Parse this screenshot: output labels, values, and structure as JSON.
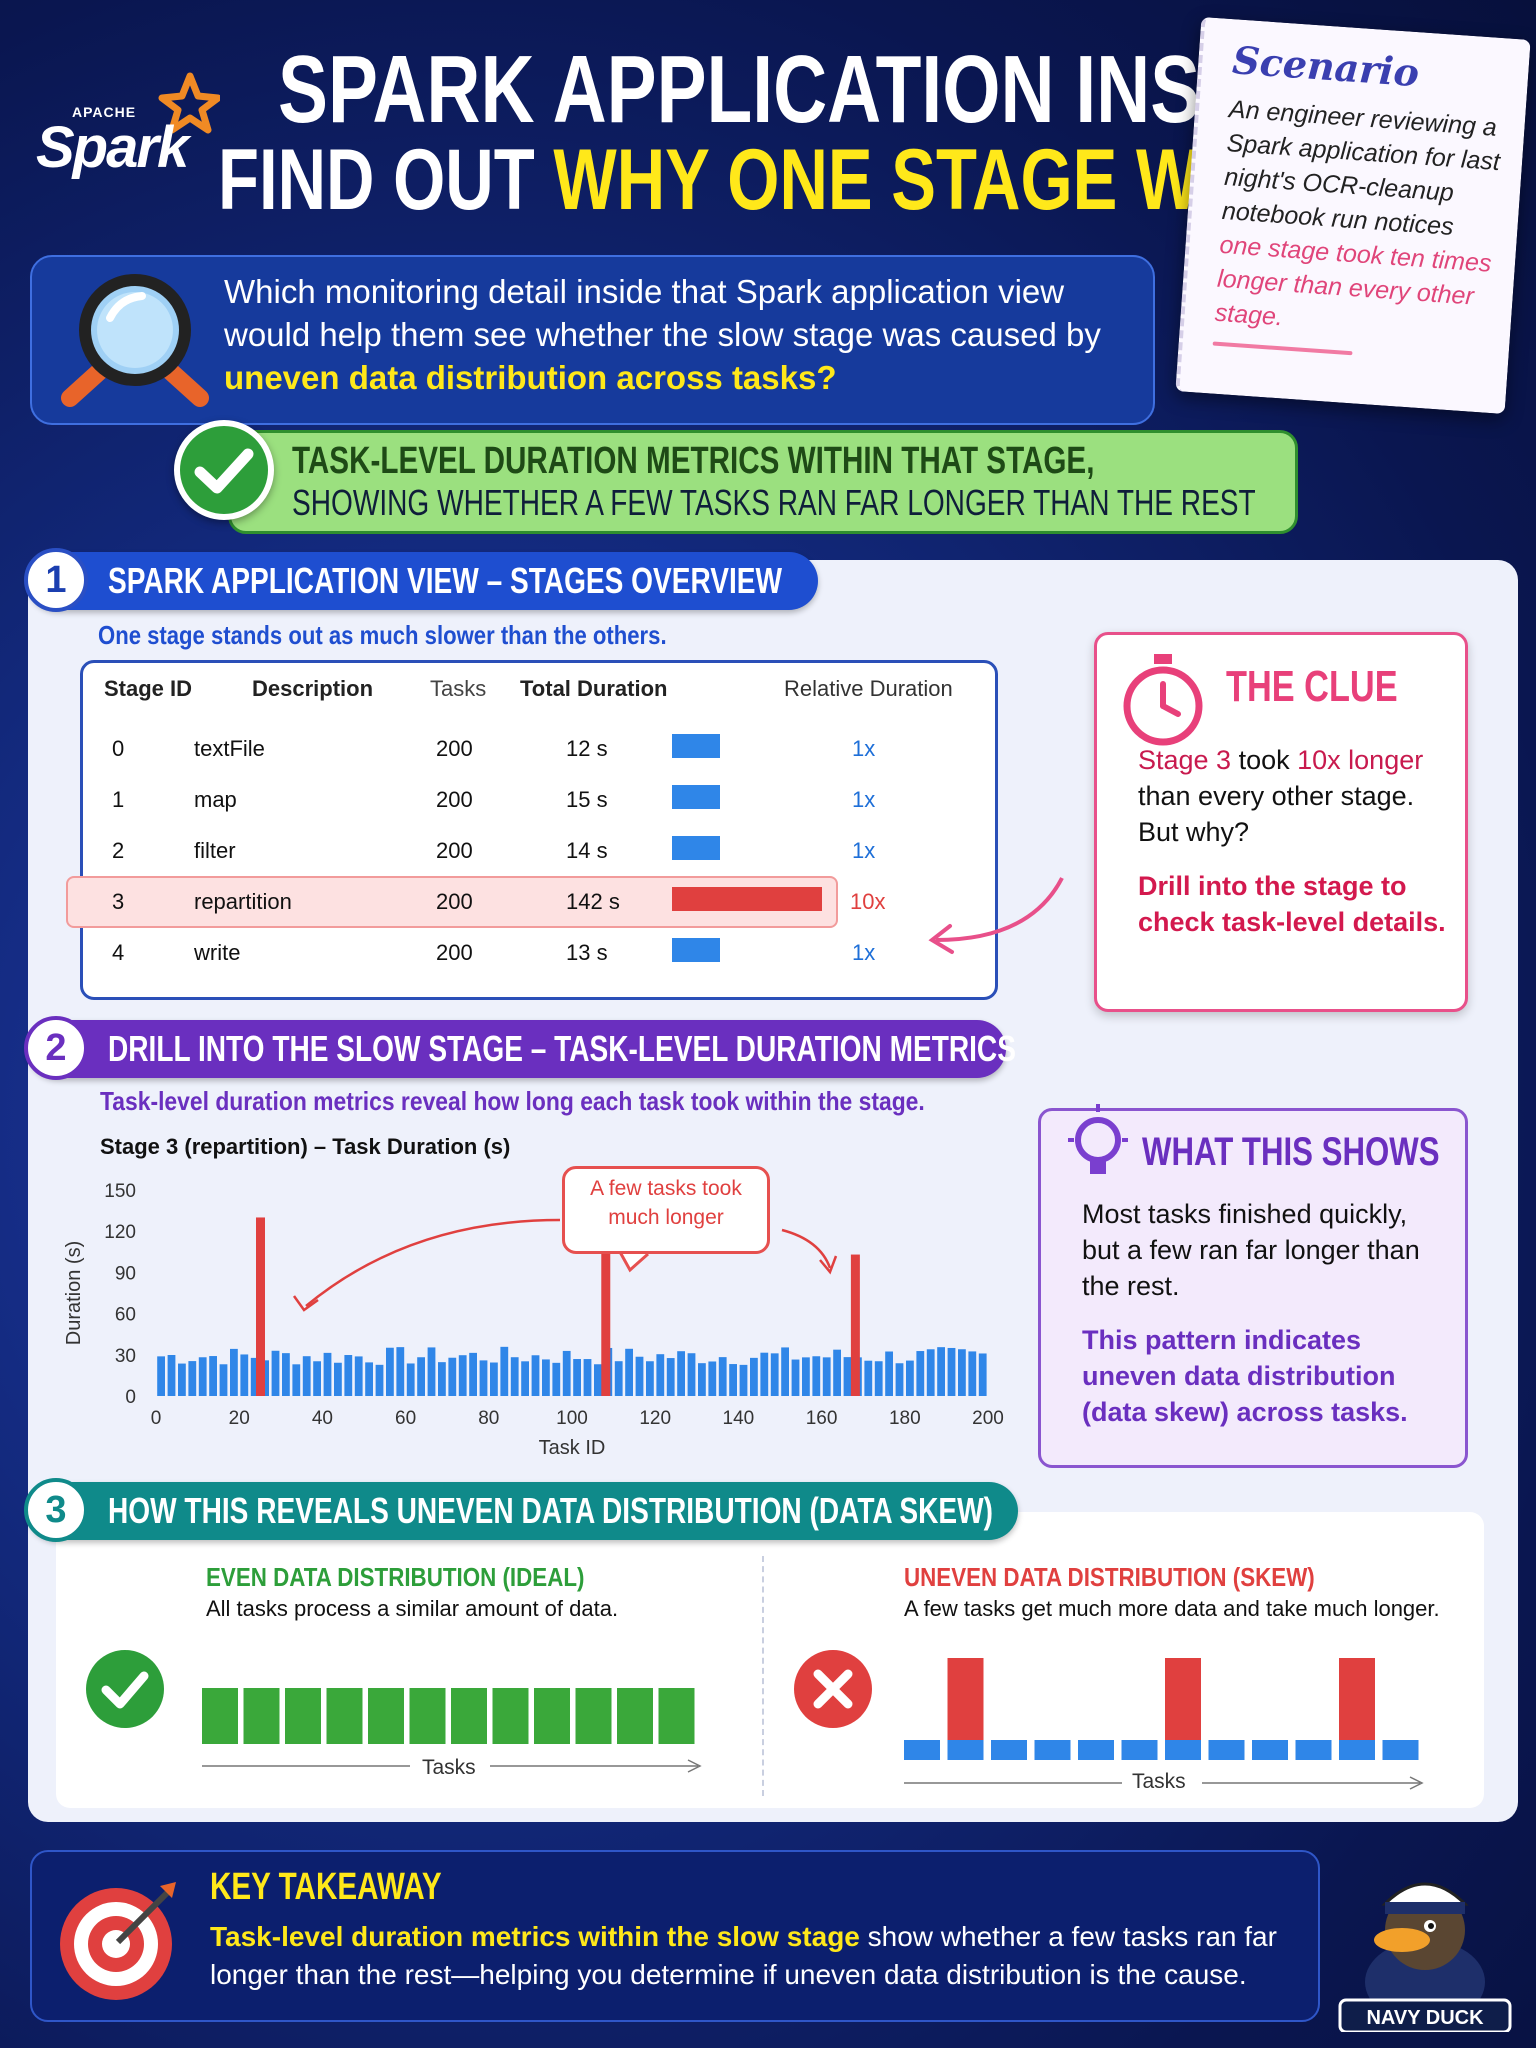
{
  "header": {
    "logo_small": "APACHE",
    "logo_main": "Spark",
    "title_line1": "SPARK APPLICATION INSIGHT",
    "title_line2_prefix": "FIND OUT ",
    "title_line2_highlight": "WHY ONE STAGE WAS SLOW"
  },
  "scenario": {
    "title": "Scenario",
    "body": "An engineer reviewing a Spark application for last night's OCR-cleanup notebook run notices",
    "highlight": "one stage took ten times longer than every other stage."
  },
  "question": {
    "text": "Which monitoring detail inside that Spark application view would help them see whether the slow stage was caused by",
    "highlight": "uneven data distribution across tasks?"
  },
  "answer": {
    "line1": "TASK-LEVEL DURATION METRICS WITHIN THAT STAGE,",
    "line2": "SHOWING WHETHER A FEW TASKS RAN FAR LONGER THAN THE REST"
  },
  "section1": {
    "number": "1",
    "title": "SPARK APPLICATION VIEW – STAGES OVERVIEW",
    "subtitle": "One stage stands out as much slower than the others.",
    "columns": [
      "Stage ID",
      "Description",
      "Tasks",
      "Total Duration",
      "Relative Duration"
    ],
    "rows": [
      {
        "id": "0",
        "desc": "textFile",
        "tasks": "200",
        "dur": "12 s",
        "rel": "1x",
        "seconds": 12
      },
      {
        "id": "1",
        "desc": "map",
        "tasks": "200",
        "dur": "15 s",
        "rel": "1x",
        "seconds": 15
      },
      {
        "id": "2",
        "desc": "filter",
        "tasks": "200",
        "dur": "14 s",
        "rel": "1x",
        "seconds": 14
      },
      {
        "id": "3",
        "desc": "repartition",
        "tasks": "200",
        "dur": "142 s",
        "rel": "10x",
        "seconds": 142
      },
      {
        "id": "4",
        "desc": "write",
        "tasks": "200",
        "dur": "13 s",
        "rel": "1x",
        "seconds": 13
      }
    ]
  },
  "clue": {
    "title": "THE CLUE",
    "b1_prefix": "Stage 3",
    "b1_mid": " took ",
    "b1_red": "10x longer",
    "b1_rest": " than every other stage. But why?",
    "b2": "Drill into the stage to check task-level details."
  },
  "section2": {
    "number": "2",
    "title": "DRILL INTO THE SLOW STAGE – TASK-LEVEL DURATION METRICS",
    "subtitle": "Task-level duration metrics reveal how long each task took within the stage."
  },
  "chart_data": {
    "type": "bar",
    "title": "Stage 3 (repartition) – Task Duration (s)",
    "xlabel": "Task ID",
    "ylabel": "Duration (s)",
    "ylim": [
      0,
      150
    ],
    "xlim": [
      0,
      200
    ],
    "yticks": [
      "0",
      "30",
      "60",
      "90",
      "120",
      "150"
    ],
    "xticks": [
      "0",
      "20",
      "40",
      "60",
      "80",
      "100",
      "120",
      "140",
      "160",
      "180",
      "200"
    ],
    "annotation": "A few tasks took much longer",
    "base_duration_range": [
      22,
      36
    ],
    "outliers": [
      {
        "task": 25,
        "value": 130
      },
      {
        "task": 108,
        "value": 105
      },
      {
        "task": 168,
        "value": 103
      }
    ],
    "task_count": 200
  },
  "shows": {
    "title": "WHAT THIS SHOWS",
    "b1": "Most tasks finished quickly, but a few ran far longer than the rest.",
    "b2": "This pattern indicates uneven data distribution (data skew) across tasks."
  },
  "section3": {
    "number": "3",
    "title": "HOW THIS REVEALS UNEVEN DATA DISTRIBUTION (DATA SKEW)",
    "even_title": "EVEN DATA DISTRIBUTION (IDEAL)",
    "even_desc": "All tasks process a similar amount of data.",
    "uneven_title": "UNEVEN DATA DISTRIBUTION (SKEW)",
    "uneven_desc": "A few tasks get much more data and take much longer.",
    "tasks_label": "Tasks"
  },
  "takeaway": {
    "title": "KEY TAKEAWAY",
    "highlight": "Task-level duration metrics within the slow stage",
    "rest": " show whether a few tasks ran far longer than the rest—helping you determine if uneven data distribution is the cause."
  },
  "mascot": {
    "label": "NAVY DUCK"
  },
  "colors": {
    "accent_blue": "#1e4ed0",
    "accent_purple": "#6a2fbf",
    "accent_teal": "#0f8a8a",
    "highlight_yellow": "#ffe81a",
    "skew_red": "#e0403f",
    "ok_green": "#2d9e3a"
  }
}
